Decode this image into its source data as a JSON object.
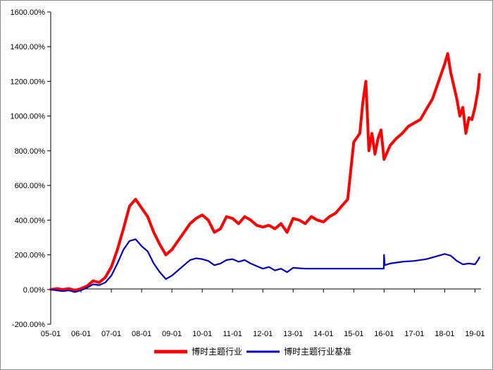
{
  "chart_data": {
    "type": "line",
    "title": "",
    "xlabel": "",
    "ylabel": "",
    "x_tick_labels": [
      "05-01",
      "06-01",
      "07-01",
      "08-01",
      "09-01",
      "10-01",
      "11-01",
      "12-01",
      "13-01",
      "14-01",
      "15-01",
      "16-01",
      "17-01",
      "18-01",
      "19-01"
    ],
    "y_tick_labels": [
      "-200.00%",
      "0.00%",
      "200.00%",
      "400.00%",
      "600.00%",
      "800.00%",
      "1000.00%",
      "1200.00%",
      "1400.00%",
      "1600.00%"
    ],
    "xlim": [
      2005.0,
      2019.2
    ],
    "ylim": [
      -200,
      1600
    ],
    "y_unit": "%",
    "grid": false,
    "legend_position": "bottom-center",
    "series": [
      {
        "name": "博时主题行业",
        "color": "#ff0000",
        "points": [
          [
            2005.0,
            0
          ],
          [
            2005.2,
            5
          ],
          [
            2005.4,
            0
          ],
          [
            2005.6,
            5
          ],
          [
            2005.8,
            -5
          ],
          [
            2006.0,
            5
          ],
          [
            2006.2,
            20
          ],
          [
            2006.4,
            50
          ],
          [
            2006.6,
            40
          ],
          [
            2006.8,
            70
          ],
          [
            2007.0,
            130
          ],
          [
            2007.2,
            230
          ],
          [
            2007.4,
            350
          ],
          [
            2007.6,
            480
          ],
          [
            2007.8,
            520
          ],
          [
            2008.0,
            470
          ],
          [
            2008.2,
            420
          ],
          [
            2008.4,
            330
          ],
          [
            2008.6,
            260
          ],
          [
            2008.8,
            200
          ],
          [
            2009.0,
            230
          ],
          [
            2009.2,
            280
          ],
          [
            2009.4,
            330
          ],
          [
            2009.6,
            380
          ],
          [
            2009.8,
            410
          ],
          [
            2010.0,
            430
          ],
          [
            2010.2,
            400
          ],
          [
            2010.4,
            330
          ],
          [
            2010.6,
            350
          ],
          [
            2010.8,
            420
          ],
          [
            2011.0,
            410
          ],
          [
            2011.2,
            380
          ],
          [
            2011.4,
            420
          ],
          [
            2011.6,
            400
          ],
          [
            2011.8,
            370
          ],
          [
            2012.0,
            360
          ],
          [
            2012.2,
            370
          ],
          [
            2012.4,
            350
          ],
          [
            2012.6,
            380
          ],
          [
            2012.8,
            330
          ],
          [
            2013.0,
            410
          ],
          [
            2013.2,
            400
          ],
          [
            2013.4,
            380
          ],
          [
            2013.6,
            420
          ],
          [
            2013.8,
            400
          ],
          [
            2014.0,
            390
          ],
          [
            2014.2,
            420
          ],
          [
            2014.4,
            440
          ],
          [
            2014.6,
            480
          ],
          [
            2014.8,
            520
          ],
          [
            2015.0,
            850
          ],
          [
            2015.2,
            900
          ],
          [
            2015.3,
            1080
          ],
          [
            2015.4,
            1200
          ],
          [
            2015.5,
            800
          ],
          [
            2015.6,
            900
          ],
          [
            2015.7,
            780
          ],
          [
            2015.8,
            870
          ],
          [
            2015.9,
            920
          ],
          [
            2016.0,
            750
          ],
          [
            2016.2,
            830
          ],
          [
            2016.4,
            870
          ],
          [
            2016.6,
            900
          ],
          [
            2016.8,
            940
          ],
          [
            2017.0,
            960
          ],
          [
            2017.2,
            980
          ],
          [
            2017.4,
            1040
          ],
          [
            2017.6,
            1100
          ],
          [
            2017.8,
            1200
          ],
          [
            2018.0,
            1300
          ],
          [
            2018.1,
            1360
          ],
          [
            2018.2,
            1250
          ],
          [
            2018.4,
            1100
          ],
          [
            2018.5,
            1000
          ],
          [
            2018.6,
            1050
          ],
          [
            2018.7,
            900
          ],
          [
            2018.8,
            990
          ],
          [
            2018.9,
            980
          ],
          [
            2019.0,
            1050
          ],
          [
            2019.1,
            1150
          ],
          [
            2019.15,
            1240
          ]
        ]
      },
      {
        "name": "博时主题行业基准",
        "color": "#0000cc",
        "points": [
          [
            2005.0,
            0
          ],
          [
            2005.2,
            -5
          ],
          [
            2005.4,
            -10
          ],
          [
            2005.6,
            -5
          ],
          [
            2005.8,
            -15
          ],
          [
            2006.0,
            -5
          ],
          [
            2006.2,
            10
          ],
          [
            2006.4,
            30
          ],
          [
            2006.6,
            25
          ],
          [
            2006.8,
            40
          ],
          [
            2007.0,
            80
          ],
          [
            2007.2,
            150
          ],
          [
            2007.4,
            230
          ],
          [
            2007.6,
            280
          ],
          [
            2007.8,
            290
          ],
          [
            2008.0,
            250
          ],
          [
            2008.2,
            220
          ],
          [
            2008.4,
            150
          ],
          [
            2008.6,
            100
          ],
          [
            2008.8,
            60
          ],
          [
            2009.0,
            80
          ],
          [
            2009.2,
            110
          ],
          [
            2009.4,
            140
          ],
          [
            2009.6,
            170
          ],
          [
            2009.8,
            180
          ],
          [
            2010.0,
            175
          ],
          [
            2010.2,
            165
          ],
          [
            2010.4,
            140
          ],
          [
            2010.6,
            150
          ],
          [
            2010.8,
            170
          ],
          [
            2011.0,
            175
          ],
          [
            2011.2,
            160
          ],
          [
            2011.4,
            170
          ],
          [
            2011.6,
            150
          ],
          [
            2011.8,
            135
          ],
          [
            2012.0,
            120
          ],
          [
            2012.2,
            130
          ],
          [
            2012.4,
            110
          ],
          [
            2012.6,
            120
          ],
          [
            2012.8,
            100
          ],
          [
            2013.0,
            125
          ],
          [
            2013.4,
            120
          ],
          [
            2014.0,
            120
          ],
          [
            2015.0,
            120
          ],
          [
            2015.99,
            120
          ],
          [
            2016.0,
            200
          ],
          [
            2016.02,
            140
          ],
          [
            2016.2,
            150
          ],
          [
            2016.6,
            160
          ],
          [
            2017.0,
            165
          ],
          [
            2017.4,
            175
          ],
          [
            2017.8,
            195
          ],
          [
            2018.0,
            205
          ],
          [
            2018.2,
            195
          ],
          [
            2018.4,
            165
          ],
          [
            2018.6,
            145
          ],
          [
            2018.8,
            150
          ],
          [
            2019.0,
            145
          ],
          [
            2019.1,
            170
          ],
          [
            2019.15,
            185
          ]
        ]
      }
    ]
  }
}
